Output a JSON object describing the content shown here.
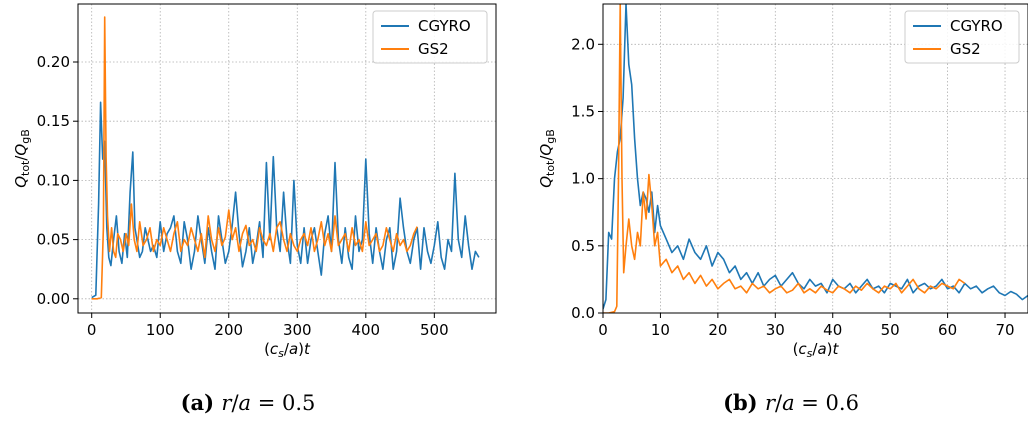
{
  "chart_data": [
    {
      "type": "line",
      "panel": "a",
      "caption_tag": "(a)",
      "caption_math": "r/a = 0.5",
      "xlabel": "(c_s/a)t",
      "ylabel": "Q_tot/Q_gB",
      "xlim": [
        -20,
        590
      ],
      "ylim": [
        -0.012,
        0.249
      ],
      "xticks": [
        0,
        100,
        200,
        300,
        400,
        500
      ],
      "xtick_labels": [
        "0",
        "100",
        "200",
        "300",
        "400",
        "500"
      ],
      "yticks": [
        0,
        0.05,
        0.1,
        0.15,
        0.2
      ],
      "ytick_labels": [
        "0.00",
        "0.05",
        "0.10",
        "0.15",
        "0.20"
      ],
      "grid": true,
      "legend_loc": "top-right",
      "series": [
        {
          "name": "CGYRO",
          "color": "#1f77b4",
          "x": [
            0,
            6,
            10,
            13,
            16,
            19,
            22,
            25,
            28,
            32,
            36,
            40,
            44,
            48,
            52,
            56,
            60,
            63,
            66,
            70,
            74,
            78,
            82,
            86,
            90,
            95,
            100,
            105,
            110,
            115,
            120,
            125,
            130,
            135,
            140,
            145,
            150,
            155,
            160,
            165,
            170,
            175,
            180,
            185,
            190,
            195,
            200,
            205,
            210,
            215,
            220,
            225,
            230,
            235,
            240,
            245,
            250,
            255,
            260,
            265,
            270,
            275,
            280,
            285,
            290,
            295,
            300,
            305,
            310,
            315,
            320,
            325,
            330,
            335,
            340,
            345,
            350,
            355,
            360,
            365,
            370,
            375,
            380,
            385,
            390,
            395,
            400,
            405,
            410,
            415,
            420,
            425,
            430,
            435,
            440,
            445,
            450,
            455,
            460,
            465,
            470,
            475,
            480,
            485,
            490,
            495,
            500,
            505,
            510,
            515,
            520,
            525,
            530,
            535,
            540,
            545,
            550,
            555,
            560,
            565
          ],
          "y": [
            0.001,
            0.003,
            0.08,
            0.166,
            0.118,
            0.133,
            0.06,
            0.035,
            0.028,
            0.05,
            0.07,
            0.04,
            0.03,
            0.055,
            0.035,
            0.09,
            0.124,
            0.06,
            0.05,
            0.035,
            0.04,
            0.06,
            0.05,
            0.04,
            0.045,
            0.035,
            0.065,
            0.04,
            0.055,
            0.06,
            0.07,
            0.04,
            0.03,
            0.065,
            0.05,
            0.025,
            0.04,
            0.07,
            0.05,
            0.03,
            0.06,
            0.04,
            0.025,
            0.07,
            0.05,
            0.03,
            0.04,
            0.062,
            0.09,
            0.055,
            0.027,
            0.04,
            0.06,
            0.03,
            0.045,
            0.065,
            0.035,
            0.115,
            0.05,
            0.12,
            0.06,
            0.04,
            0.09,
            0.05,
            0.03,
            0.1,
            0.045,
            0.03,
            0.06,
            0.03,
            0.05,
            0.06,
            0.04,
            0.02,
            0.055,
            0.07,
            0.04,
            0.115,
            0.05,
            0.03,
            0.06,
            0.035,
            0.025,
            0.07,
            0.04,
            0.05,
            0.118,
            0.055,
            0.03,
            0.06,
            0.04,
            0.025,
            0.05,
            0.06,
            0.025,
            0.04,
            0.085,
            0.06,
            0.04,
            0.03,
            0.05,
            0.06,
            0.025,
            0.06,
            0.04,
            0.03,
            0.045,
            0.065,
            0.035,
            0.025,
            0.05,
            0.04,
            0.106,
            0.05,
            0.035,
            0.07,
            0.045,
            0.025,
            0.04,
            0.035
          ]
        },
        {
          "name": "GS2",
          "color": "#ff7f0e",
          "x": [
            0,
            8,
            14,
            17,
            19,
            21,
            23,
            26,
            29,
            32,
            35,
            38,
            42,
            46,
            50,
            54,
            58,
            62,
            66,
            70,
            75,
            80,
            85,
            90,
            95,
            100,
            105,
            110,
            115,
            120,
            125,
            130,
            135,
            140,
            145,
            150,
            155,
            160,
            165,
            170,
            175,
            180,
            185,
            190,
            195,
            200,
            205,
            210,
            215,
            220,
            225,
            230,
            235,
            240,
            245,
            250,
            255,
            260,
            265,
            270,
            275,
            280,
            285,
            290,
            295,
            300,
            305,
            310,
            315,
            320,
            325,
            330,
            335,
            340,
            345,
            350,
            355,
            360,
            365,
            370,
            375,
            380,
            385,
            390,
            395,
            400,
            405,
            410,
            415,
            420,
            425,
            430,
            435,
            440,
            445,
            450,
            455,
            460,
            465,
            470,
            475
          ],
          "y": [
            0.0,
            0.0,
            0.001,
            0.06,
            0.238,
            0.12,
            0.07,
            0.04,
            0.06,
            0.04,
            0.035,
            0.055,
            0.05,
            0.04,
            0.055,
            0.045,
            0.08,
            0.05,
            0.04,
            0.065,
            0.045,
            0.05,
            0.06,
            0.04,
            0.05,
            0.045,
            0.06,
            0.05,
            0.04,
            0.055,
            0.065,
            0.04,
            0.05,
            0.045,
            0.06,
            0.05,
            0.04,
            0.055,
            0.035,
            0.07,
            0.05,
            0.04,
            0.06,
            0.045,
            0.052,
            0.075,
            0.05,
            0.06,
            0.04,
            0.055,
            0.062,
            0.045,
            0.05,
            0.04,
            0.06,
            0.05,
            0.045,
            0.055,
            0.04,
            0.06,
            0.065,
            0.05,
            0.04,
            0.055,
            0.045,
            0.04,
            0.05,
            0.055,
            0.045,
            0.06,
            0.04,
            0.05,
            0.065,
            0.045,
            0.055,
            0.04,
            0.07,
            0.045,
            0.05,
            0.055,
            0.04,
            0.06,
            0.045,
            0.05,
            0.04,
            0.065,
            0.045,
            0.05,
            0.055,
            0.04,
            0.045,
            0.06,
            0.05,
            0.04,
            0.055,
            0.045,
            0.05,
            0.04,
            0.045,
            0.055,
            0.061
          ]
        }
      ]
    },
    {
      "type": "line",
      "panel": "b",
      "caption_tag": "(b)",
      "caption_math": "r/a = 0.6",
      "xlabel": "(c_s/a)t",
      "ylabel": "Q_tot/Q_gB",
      "xlim": [
        0,
        74
      ],
      "ylim": [
        0,
        2.3
      ],
      "xticks": [
        0,
        10,
        20,
        30,
        40,
        50,
        60,
        70
      ],
      "xtick_labels": [
        "0",
        "10",
        "20",
        "30",
        "40",
        "50",
        "60",
        "70"
      ],
      "yticks": [
        0,
        0.5,
        1,
        1.5,
        2
      ],
      "ytick_labels": [
        "0.0",
        "0.5",
        "1.0",
        "1.5",
        "2.0"
      ],
      "grid": true,
      "legend_loc": "top-right",
      "series": [
        {
          "name": "CGYRO",
          "color": "#1f77b4",
          "x": [
            0,
            0.5,
            1,
            1.5,
            2,
            2.5,
            3,
            3.5,
            4,
            4.5,
            5,
            5.5,
            6,
            6.5,
            7,
            7.5,
            8,
            8.5,
            9,
            9.5,
            10,
            11,
            12,
            13,
            14,
            15,
            16,
            17,
            18,
            19,
            20,
            21,
            22,
            23,
            24,
            25,
            26,
            27,
            28,
            29,
            30,
            31,
            32,
            33,
            34,
            35,
            36,
            37,
            38,
            39,
            40,
            41,
            42,
            43,
            44,
            45,
            46,
            47,
            48,
            49,
            50,
            51,
            52,
            53,
            54,
            55,
            56,
            57,
            58,
            59,
            60,
            61,
            62,
            63,
            64,
            65,
            66,
            67,
            68,
            69,
            70,
            71,
            72,
            73,
            74
          ],
          "y": [
            0.03,
            0.1,
            0.6,
            0.55,
            1.0,
            1.2,
            1.3,
            1.6,
            2.3,
            1.85,
            1.7,
            1.3,
            1.0,
            0.8,
            0.9,
            0.85,
            0.75,
            0.9,
            0.6,
            0.8,
            0.65,
            0.55,
            0.45,
            0.5,
            0.4,
            0.55,
            0.45,
            0.4,
            0.5,
            0.35,
            0.45,
            0.4,
            0.3,
            0.35,
            0.25,
            0.3,
            0.22,
            0.3,
            0.2,
            0.25,
            0.28,
            0.2,
            0.25,
            0.3,
            0.22,
            0.18,
            0.25,
            0.2,
            0.22,
            0.15,
            0.25,
            0.2,
            0.18,
            0.22,
            0.15,
            0.2,
            0.25,
            0.18,
            0.2,
            0.15,
            0.22,
            0.2,
            0.18,
            0.25,
            0.15,
            0.2,
            0.22,
            0.18,
            0.2,
            0.25,
            0.18,
            0.2,
            0.15,
            0.22,
            0.18,
            0.2,
            0.15,
            0.18,
            0.2,
            0.15,
            0.13,
            0.16,
            0.14,
            0.1,
            0.13
          ]
        },
        {
          "name": "GS2",
          "color": "#ff7f0e",
          "x": [
            0,
            1,
            2,
            2.4,
            2.7,
            3,
            3.3,
            3.6,
            4,
            4.5,
            5,
            5.5,
            6,
            6.5,
            7,
            7.5,
            8,
            8.5,
            9,
            9.5,
            10,
            11,
            12,
            13,
            14,
            15,
            16,
            17,
            18,
            19,
            20,
            21,
            22,
            23,
            24,
            25,
            26,
            27,
            28,
            29,
            30,
            31,
            32,
            33,
            34,
            35,
            36,
            37,
            38,
            39,
            40,
            41,
            42,
            43,
            44,
            45,
            46,
            47,
            48,
            49,
            50,
            51,
            52,
            53,
            54,
            55,
            56,
            57,
            58,
            59,
            60,
            61,
            62,
            63
          ],
          "y": [
            0.0,
            0.0,
            0.01,
            0.05,
            1.0,
            2.3,
            1.0,
            0.3,
            0.5,
            0.7,
            0.5,
            0.4,
            0.6,
            0.5,
            0.9,
            0.7,
            1.03,
            0.8,
            0.5,
            0.6,
            0.35,
            0.4,
            0.3,
            0.35,
            0.25,
            0.3,
            0.22,
            0.28,
            0.2,
            0.25,
            0.18,
            0.22,
            0.25,
            0.18,
            0.2,
            0.15,
            0.22,
            0.18,
            0.2,
            0.15,
            0.18,
            0.2,
            0.15,
            0.17,
            0.22,
            0.15,
            0.18,
            0.15,
            0.2,
            0.17,
            0.15,
            0.2,
            0.18,
            0.15,
            0.2,
            0.17,
            0.22,
            0.18,
            0.15,
            0.2,
            0.18,
            0.22,
            0.15,
            0.2,
            0.25,
            0.18,
            0.15,
            0.2,
            0.18,
            0.22,
            0.2,
            0.18,
            0.25,
            0.22
          ]
        }
      ]
    }
  ]
}
